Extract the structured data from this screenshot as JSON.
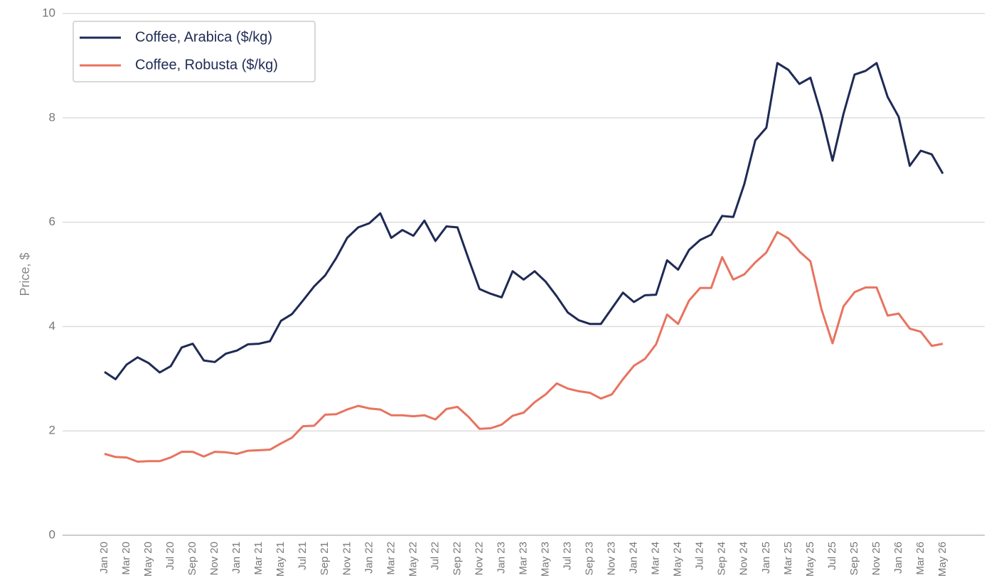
{
  "chart_data": {
    "type": "line",
    "ylabel": "Price, $",
    "categories": [
      "Jan 20",
      null,
      "Mar 20",
      null,
      "May 20",
      null,
      "Jul 20",
      null,
      "Sep 20",
      null,
      "Nov 20",
      null,
      "Jan 21",
      null,
      "Mar 21",
      null,
      "May 21",
      null,
      "Jul 21",
      null,
      "Sep 21",
      null,
      "Nov 21",
      null,
      "Jan 22",
      null,
      "Mar 22",
      null,
      "May 22",
      null,
      "Jul 22",
      null,
      "Sep 22",
      null,
      "Nov 22",
      null,
      "Jan 23",
      null,
      "Mar 23",
      null,
      "May 23",
      null,
      "Jul 23",
      null,
      "Sep 23",
      null,
      "Nov 23",
      null,
      "Jan 24",
      null,
      "Mar 24",
      null,
      "May 24",
      null,
      "Jul 24",
      null,
      "Sep 24",
      null,
      "Nov 24",
      null,
      "Jan 25",
      null,
      "Mar 25",
      null,
      "May 25",
      null,
      "Jul 25",
      null,
      "Sep 25",
      null,
      "Nov 25",
      null,
      "Jan 26",
      null,
      "Mar 26",
      null,
      "May 26"
    ],
    "series": [
      {
        "name": "Coffee, Arabica ($/kg)",
        "color": "#1f2a55",
        "values": [
          3.13,
          2.99,
          3.27,
          3.41,
          3.3,
          3.12,
          3.24,
          3.6,
          3.67,
          3.35,
          3.32,
          3.48,
          3.54,
          3.66,
          3.67,
          3.72,
          4.11,
          4.24,
          4.5,
          4.77,
          4.98,
          5.31,
          5.7,
          5.9,
          5.98,
          6.17,
          5.7,
          5.85,
          5.74,
          6.03,
          5.64,
          5.92,
          5.9,
          5.3,
          4.72,
          4.63,
          4.56,
          5.06,
          4.9,
          5.06,
          4.86,
          4.58,
          4.27,
          4.12,
          4.05,
          4.05,
          4.35,
          4.65,
          4.47,
          4.6,
          4.61,
          5.27,
          5.09,
          5.47,
          5.66,
          5.76,
          6.12,
          6.1,
          6.73,
          7.57,
          7.81,
          9.05,
          8.92,
          8.65,
          8.77,
          8.05,
          7.18,
          8.08,
          8.83,
          8.9,
          9.05,
          8.4,
          8.02,
          7.08,
          7.37,
          7.3,
          6.93
        ]
      },
      {
        "name": "Coffee, Robusta ($/kg)",
        "color": "#e8735f",
        "values": [
          1.56,
          1.5,
          1.49,
          1.41,
          1.42,
          1.42,
          1.49,
          1.6,
          1.6,
          1.51,
          1.6,
          1.59,
          1.56,
          1.62,
          1.63,
          1.64,
          1.76,
          1.87,
          2.09,
          2.1,
          2.31,
          2.32,
          2.41,
          2.48,
          2.43,
          2.41,
          2.3,
          2.3,
          2.28,
          2.3,
          2.22,
          2.42,
          2.46,
          2.27,
          2.04,
          2.05,
          2.12,
          2.29,
          2.35,
          2.55,
          2.7,
          2.91,
          2.81,
          2.76,
          2.73,
          2.62,
          2.7,
          2.99,
          3.25,
          3.38,
          3.66,
          4.23,
          4.05,
          4.5,
          4.74,
          4.74,
          5.33,
          4.9,
          5.0,
          5.23,
          5.42,
          5.81,
          5.69,
          5.44,
          5.25,
          4.33,
          3.68,
          4.39,
          4.66,
          4.75,
          4.75,
          4.21,
          4.25,
          3.96,
          3.9,
          3.63,
          3.67
        ]
      }
    ],
    "ylim": [
      0,
      10
    ],
    "yticks": [
      0,
      2,
      4,
      6,
      8,
      10
    ],
    "grid": true,
    "legend": "upper left"
  }
}
